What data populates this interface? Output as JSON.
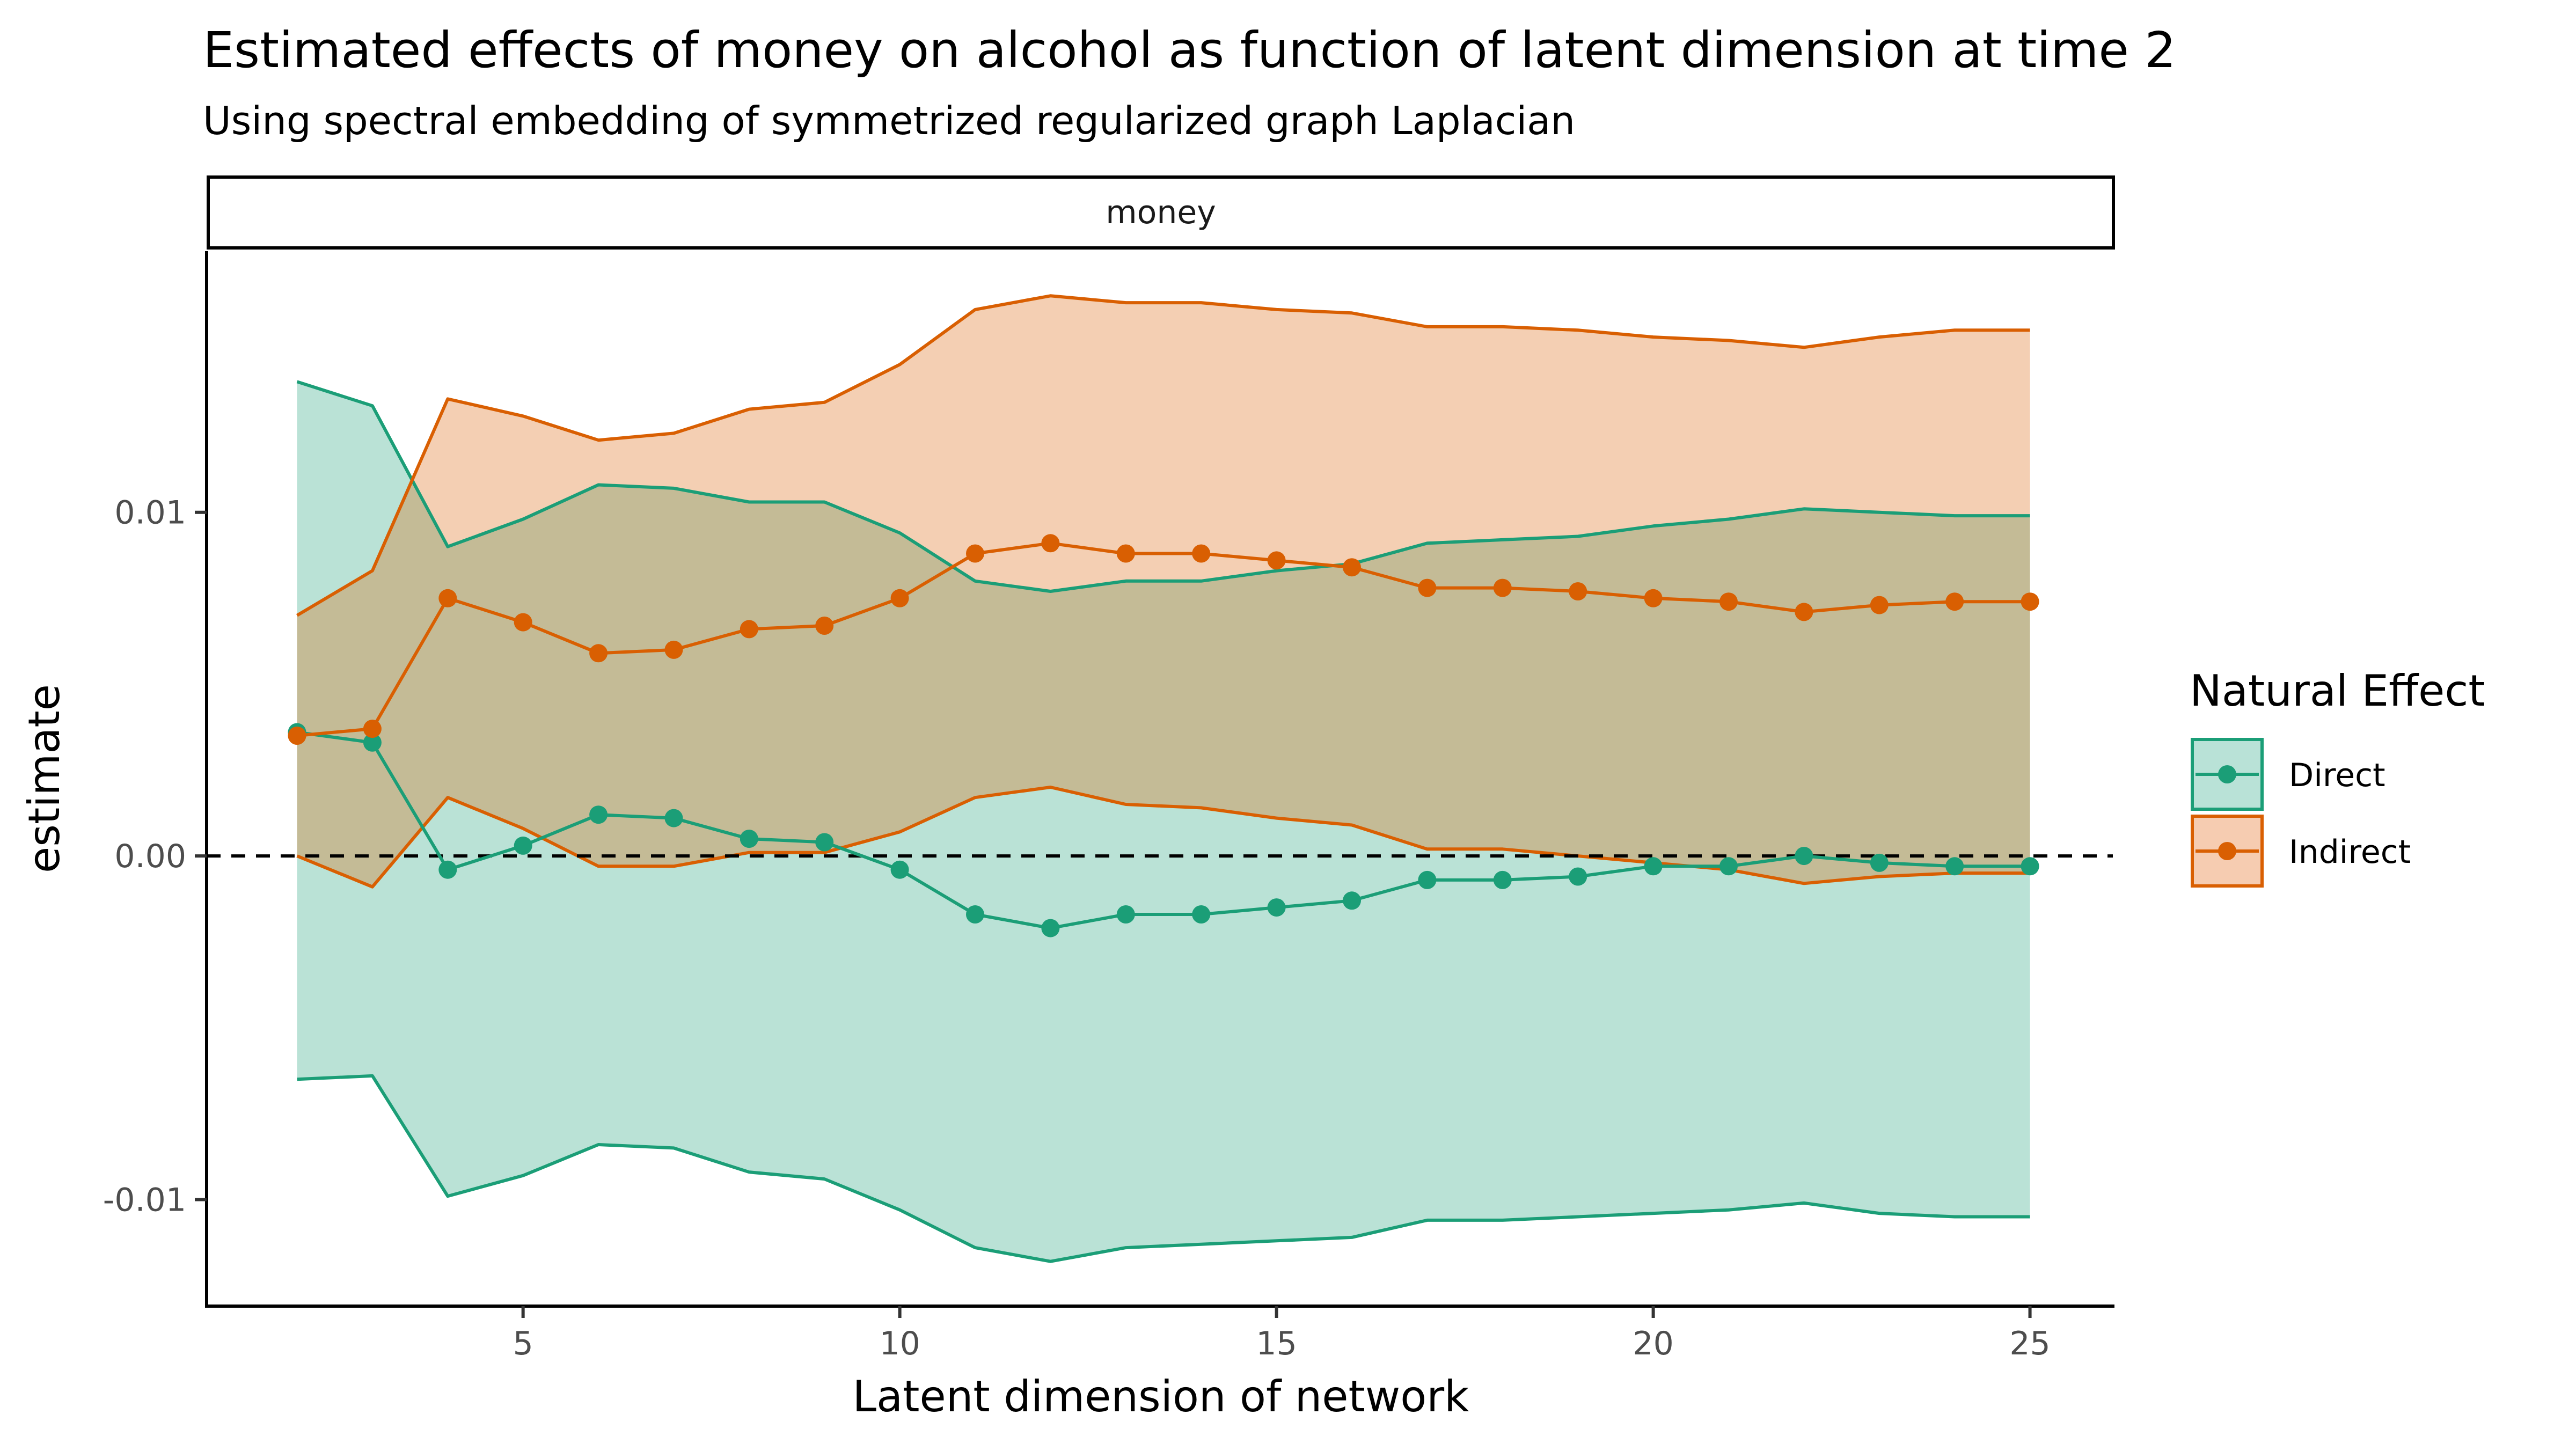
{
  "chart_data": {
    "type": "line",
    "title": "Estimated effects of money on alcohol as function of latent dimension at time 2",
    "subtitle": "Using spectral embedding of symmetrized regularized graph Laplacian",
    "facet_label": "money",
    "xlabel": "Latent dimension of network",
    "ylabel": "estimate",
    "xlim": [
      0.8,
      26.1
    ],
    "ylim": [
      -0.0131,
      0.0176
    ],
    "x_ticks": [
      5,
      10,
      15,
      20,
      25
    ],
    "y_ticks": [
      -0.01,
      0.0,
      0.01
    ],
    "y_tick_labels": [
      "-0.01",
      "0.00",
      "0.01"
    ],
    "reference_line": {
      "y": 0,
      "style": "dashed"
    },
    "grid": false,
    "legend": {
      "title": "Natural Effect",
      "position": "right"
    },
    "x": [
      2,
      3,
      4,
      5,
      6,
      7,
      8,
      9,
      10,
      11,
      12,
      13,
      14,
      15,
      16,
      17,
      18,
      19,
      20,
      21,
      22,
      23,
      24,
      25
    ],
    "series": [
      {
        "name": "Direct",
        "color": "#1b9e77",
        "fill": "#b9e2d7",
        "estimate": [
          0.0036,
          0.0033,
          -0.0004,
          0.0003,
          0.0012,
          0.0011,
          0.0005,
          0.0004,
          -0.0004,
          -0.0017,
          -0.0021,
          -0.0017,
          -0.0017,
          -0.0015,
          -0.0013,
          -0.0007,
          -0.0007,
          -0.0006,
          -0.0003,
          -0.0003,
          0.0,
          -0.0002,
          -0.0003,
          -0.0003
        ],
        "lower": [
          -0.0065,
          -0.0064,
          -0.0099,
          -0.0093,
          -0.0084,
          -0.0085,
          -0.0092,
          -0.0094,
          -0.0103,
          -0.0114,
          -0.0118,
          -0.0114,
          -0.0113,
          -0.0112,
          -0.0111,
          -0.0106,
          -0.0106,
          -0.0105,
          -0.0104,
          -0.0103,
          -0.0101,
          -0.0104,
          -0.0105,
          -0.0105
        ],
        "upper": [
          0.0138,
          0.0131,
          0.009,
          0.0098,
          0.0108,
          0.0107,
          0.0103,
          0.0103,
          0.0094,
          0.008,
          0.0077,
          0.008,
          0.008,
          0.0083,
          0.0085,
          0.0091,
          0.0092,
          0.0093,
          0.0096,
          0.0098,
          0.0101,
          0.01,
          0.0099,
          0.0099
        ]
      },
      {
        "name": "Indirect",
        "color": "#d95f02",
        "fill": "#f6ccb1",
        "estimate": [
          0.0035,
          0.0037,
          0.0075,
          0.0068,
          0.0059,
          0.006,
          0.0066,
          0.0067,
          0.0075,
          0.0088,
          0.0091,
          0.0088,
          0.0088,
          0.0086,
          0.0084,
          0.0078,
          0.0078,
          0.0077,
          0.0075,
          0.0074,
          0.0071,
          0.0073,
          0.0074,
          0.0074
        ],
        "lower": [
          0.0,
          -0.0009,
          0.0017,
          0.0008,
          -0.0003,
          -0.0003,
          0.0001,
          0.0001,
          0.0007,
          0.0017,
          0.002,
          0.0015,
          0.0014,
          0.0011,
          0.0009,
          0.0002,
          0.0002,
          0.0,
          -0.0002,
          -0.0004,
          -0.0008,
          -0.0006,
          -0.0005,
          -0.0005
        ],
        "upper": [
          0.007,
          0.0083,
          0.0133,
          0.0128,
          0.0121,
          0.0123,
          0.013,
          0.0132,
          0.0143,
          0.0159,
          0.0163,
          0.0161,
          0.0161,
          0.0159,
          0.0158,
          0.0154,
          0.0154,
          0.0153,
          0.0151,
          0.015,
          0.0148,
          0.0151,
          0.0153,
          0.0153
        ]
      }
    ]
  }
}
